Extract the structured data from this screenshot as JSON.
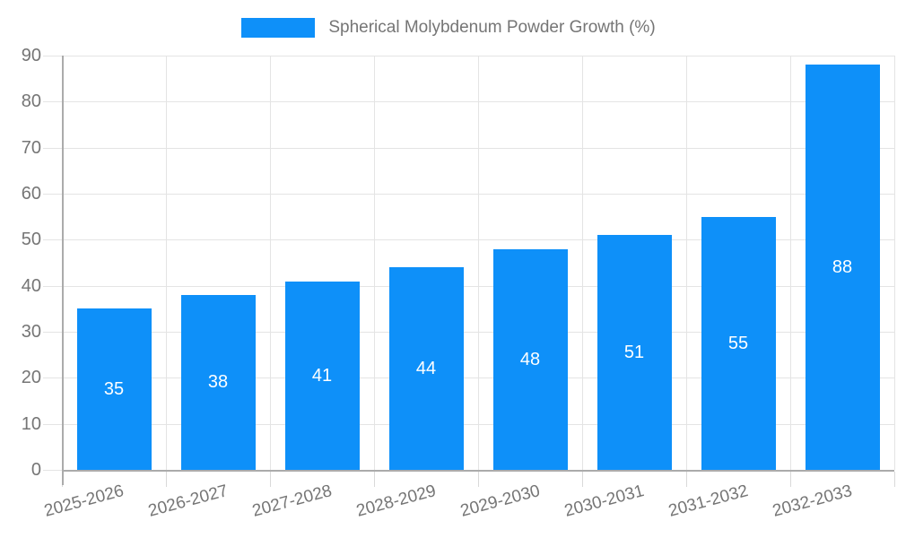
{
  "chart_data": {
    "type": "bar",
    "title": "",
    "legend": "Spherical Molybdenum Powder Growth (%)",
    "legend_position": "top",
    "categories": [
      "2025-2026",
      "2026-2027",
      "2027-2028",
      "2028-2029",
      "2029-2030",
      "2030-2031",
      "2031-2032",
      "2032-2033"
    ],
    "values": [
      35,
      38,
      41,
      44,
      48,
      51,
      55,
      88
    ],
    "ylim": [
      0,
      90
    ],
    "yticks": [
      0,
      10,
      20,
      30,
      40,
      50,
      60,
      70,
      80,
      90
    ],
    "xlabel": "",
    "ylabel": "",
    "grid": true,
    "value_labels_inside_bars": true,
    "colors": {
      "bar": "#0E90F9",
      "bar_value_text": "#FFFFFF",
      "grid_line": "#E4E4E4",
      "axis_line": "#ABABAB",
      "tick_mark": "#D9D9D9",
      "tick_label_text": "#757575",
      "legend_text": "#757575",
      "background": "#FFFFFF"
    }
  }
}
